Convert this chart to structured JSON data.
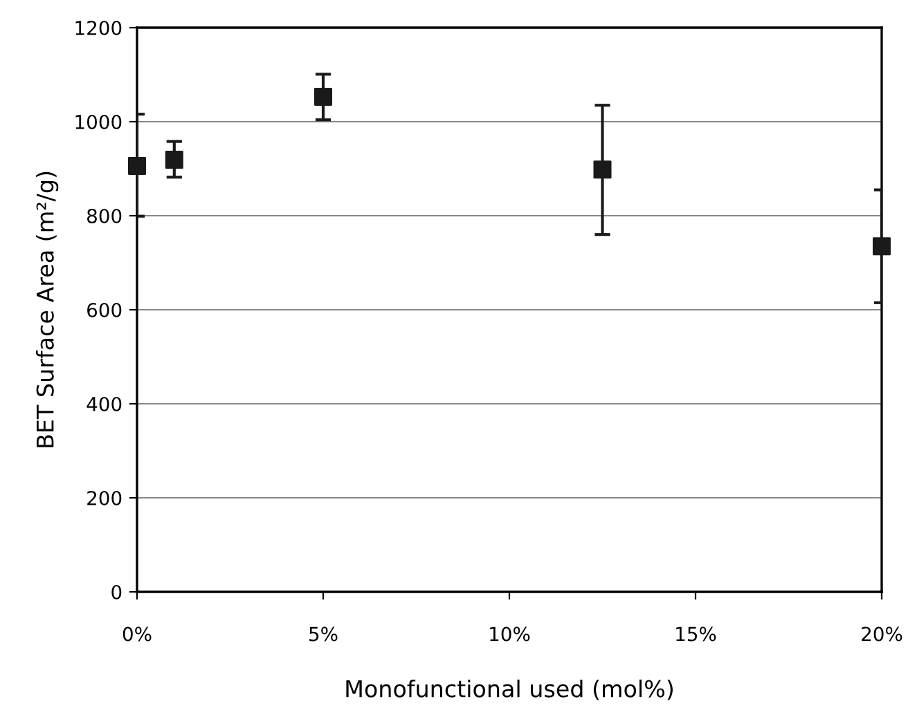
{
  "chart_data": {
    "type": "scatter",
    "xlabel": "Monofunctional used (mol%)",
    "ylabel": "BET Surface Area (m²/g)",
    "x": [
      0,
      1,
      5,
      12.5,
      20
    ],
    "series": [
      {
        "color": "#1a1a1a",
        "values": [
          906,
          919,
          1053,
          898,
          735
        ],
        "errors": [
          [
            799,
            1016
          ],
          [
            882,
            958
          ],
          [
            1004,
            1101
          ],
          [
            760,
            1035
          ],
          [
            615,
            855
          ]
        ]
      }
    ],
    "xlim": [
      0,
      20
    ],
    "xticks": [
      {
        "value": 0,
        "label": "0%"
      },
      {
        "value": 5,
        "label": "5%"
      },
      {
        "value": 10,
        "label": "10%"
      },
      {
        "value": 15,
        "label": "15%"
      },
      {
        "value": 20,
        "label": "20%"
      }
    ],
    "ylim": [
      0,
      1200
    ],
    "yticks": [
      0,
      200,
      400,
      600,
      800,
      1000,
      1200
    ],
    "grid": "y",
    "marker": "square"
  }
}
